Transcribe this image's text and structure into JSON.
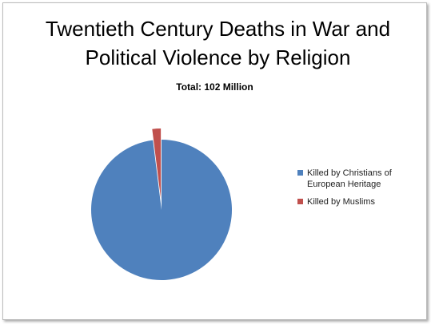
{
  "chart_data": {
    "type": "pie",
    "title": "Twentieth Century Deaths in War and Political Violence by Religion",
    "subtitle": "Total:  102 Million",
    "categories": [
      "Killed by Christians of European Heritage",
      "Killed by Muslims"
    ],
    "values": [
      100,
      2
    ],
    "colors": [
      "#4f81bd",
      "#c0504d"
    ],
    "legend": "right"
  }
}
